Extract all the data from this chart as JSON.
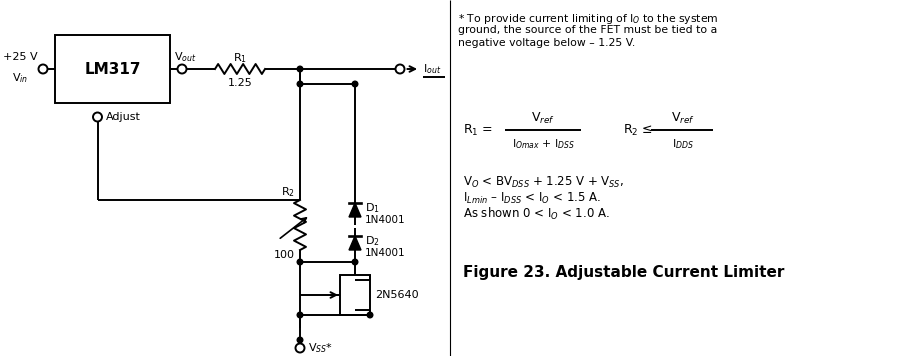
{
  "bg_color": "#ffffff",
  "fig_width": 9.06,
  "fig_height": 3.56,
  "dpi": 100,
  "note_text": "* To provide current limiting of I$_O$ to the system\nground, the source of the FET must be tied to a\nnegative voltage below – 1.25 V.",
  "eq1_lhs": "R$_1$ =",
  "eq1_num": "V$_{ref}$",
  "eq1_den": "I$_{Omax}$ + I$_{DSS}$",
  "eq2_lhs": "R$_2$ ≤",
  "eq2_num": "V$_{ref}$",
  "eq2_den": "I$_{DDS}$",
  "cond1": "V$_O$ < BV$_{DSS}$ + 1.25 V + V$_{SS}$,",
  "cond2": "I$_{Lmin}$ – I$_{DSS}$ < I$_O$ < 1.5 A.",
  "cond3": "As shown 0 < I$_O$ < 1.0 A.",
  "figure_caption": "Figure 23. Adjustable Current Limiter",
  "lm317_label": "LM317",
  "vout_label": "V$_{out}$",
  "r1_label": "R$_1$",
  "r1_val": "1.25",
  "r2_label": "R$_2$",
  "r2_val": "100",
  "d1_label": "D$_1$",
  "d1_part": "1N4001",
  "d2_label": "D$_2$",
  "d2_part": "1N4001",
  "fet_label": "2N5640",
  "vss_label": "V$_{SS}$*",
  "vin_label": "V$_{in}$",
  "v25_label": "+25 V",
  "adjust_label": "Adjust",
  "iout_label": "I$_{out}$"
}
